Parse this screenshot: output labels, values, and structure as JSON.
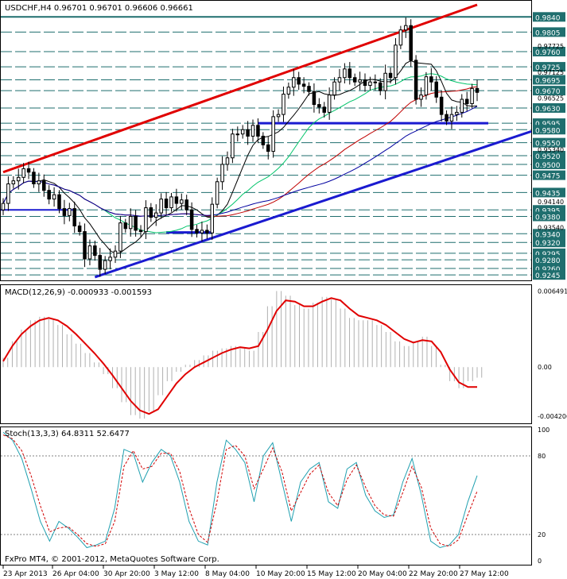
{
  "window": {
    "symbol_header": "USDCHF,H4  0.96701 0.96701 0.96606 0.96661",
    "footer": "FxPro MT4, © 2001-2012, MetaQuotes Software Corp."
  },
  "colors": {
    "candles": "#000000",
    "ma_fast": "#000000",
    "ma_mid": "#00c46a",
    "ma_slow": "#c00000",
    "ma_slower": "#0000a0",
    "trend_red": "#e00000",
    "trend_blue": "#1a1ad0",
    "levels": "#1f6e6e",
    "macd_line": "#e00000",
    "stoch_main": "#20a0b0",
    "stoch_signal": "#d00000",
    "price_label_bg": "#1f6e6e"
  },
  "chart_data": [
    {
      "type": "candlestick",
      "title": "USDCHF,H4  0.96701 0.96701 0.96606 0.96661",
      "ylim": [
        0.9238,
        0.9868
      ],
      "x_ticks": [
        "23 Apr 2013",
        "26 Apr 04:00",
        "30 Apr 20:00",
        "3 May 12:00",
        "8 May 04:00",
        "10 May 20:00",
        "15 May 12:00",
        "20 May 04:00",
        "22 May 20:00",
        "27 May 12:00"
      ],
      "levels": [
        0.984,
        0.9805,
        0.976,
        0.9725,
        0.9695,
        0.967,
        0.963,
        0.9595,
        0.958,
        0.955,
        0.952,
        0.95,
        0.9475,
        0.9435,
        0.9395,
        0.938,
        0.934,
        0.932,
        0.9295,
        0.928,
        0.926,
        0.9245
      ],
      "minor_labels": [
        0.97725,
        0.97125,
        0.96525,
        0.9534,
        0.9414,
        0.9354
      ],
      "close": [
        0.941,
        0.9455,
        0.9462,
        0.947,
        0.949,
        0.9482,
        0.9455,
        0.9462,
        0.944,
        0.942,
        0.943,
        0.9398,
        0.9382,
        0.9398,
        0.9358,
        0.9345,
        0.9282,
        0.9312,
        0.929,
        0.9258,
        0.9278,
        0.9286,
        0.93,
        0.9365,
        0.9352,
        0.938,
        0.9348,
        0.9345,
        0.94,
        0.9378,
        0.9388,
        0.942,
        0.94,
        0.9425,
        0.941,
        0.9418,
        0.9395,
        0.935,
        0.9342,
        0.9348,
        0.9342,
        0.9408,
        0.946,
        0.95,
        0.9515,
        0.957,
        0.957,
        0.958,
        0.9565,
        0.959,
        0.9565,
        0.9545,
        0.953,
        0.961,
        0.9615,
        0.9662,
        0.9678,
        0.97,
        0.9685,
        0.968,
        0.9668,
        0.9638,
        0.9632,
        0.962,
        0.966,
        0.969,
        0.97,
        0.972,
        0.97,
        0.969,
        0.9695,
        0.9682,
        0.969,
        0.9688,
        0.967,
        0.971,
        0.97,
        0.9775,
        0.981,
        0.982,
        0.974,
        0.965,
        0.966,
        0.9702,
        0.969,
        0.9655,
        0.9615,
        0.96,
        0.9615,
        0.962,
        0.965,
        0.964,
        0.9675,
        0.9666
      ],
      "macd": {
        "title": "MACD(12,26,9) -0.000933 -0.001593",
        "ylim": [
          -0.0046,
          0.0068
        ],
        "ticks": [
          "0.006491",
          "0.00",
          "-0.004206"
        ],
        "tick_values": [
          0.006491,
          0.0,
          -0.004206
        ],
        "signal": [
          0.0005,
          0.0018,
          0.0028,
          0.0035,
          0.004,
          0.0042,
          0.004,
          0.0035,
          0.0028,
          0.002,
          0.0012,
          0.0003,
          -0.0007,
          -0.0018,
          -0.0029,
          -0.0037,
          -0.004,
          -0.0036,
          -0.0025,
          -0.0014,
          -0.0006,
          0.0,
          0.0004,
          0.0008,
          0.0012,
          0.0015,
          0.0017,
          0.0016,
          0.0018,
          0.0032,
          0.0048,
          0.0057,
          0.0056,
          0.0052,
          0.0052,
          0.0056,
          0.0059,
          0.0057,
          0.005,
          0.0044,
          0.0042,
          0.004,
          0.0036,
          0.003,
          0.0024,
          0.0021,
          0.0023,
          0.0022,
          0.0013,
          -0.0002,
          -0.0013,
          -0.0017,
          -0.0017
        ],
        "histogram": [
          0.0008,
          0.0022,
          0.0032,
          0.004,
          0.0043,
          0.0041,
          0.0036,
          0.0028,
          0.002,
          0.0012,
          0.0004,
          -0.0006,
          -0.0018,
          -0.003,
          -0.0041,
          -0.0044,
          -0.0038,
          -0.0024,
          -0.0012,
          -0.0004,
          0.0002,
          0.0006,
          0.001,
          0.0014,
          0.0016,
          0.0018,
          0.0016,
          0.0014,
          0.003,
          0.0052,
          0.0065,
          0.0061,
          0.0053,
          0.005,
          0.0055,
          0.006,
          0.0058,
          0.005,
          0.0042,
          0.004,
          0.004,
          0.0036,
          0.003,
          0.0022,
          0.0018,
          0.0022,
          0.0026,
          0.0018,
          0.0002,
          -0.0012,
          -0.0018,
          -0.0012,
          -0.0009
        ]
      },
      "stochastic": {
        "title": "Stoch(13,3,3) 64.8311 52.6477",
        "ylim": [
          0,
          100
        ],
        "ticks": [
          "100",
          "80",
          "20",
          "0"
        ],
        "tick_values": [
          100,
          80,
          20,
          0
        ],
        "main": [
          98,
          92,
          78,
          55,
          30,
          15,
          30,
          25,
          18,
          10,
          12,
          15,
          40,
          85,
          82,
          60,
          75,
          85,
          80,
          60,
          30,
          15,
          12,
          60,
          92,
          85,
          75,
          45,
          80,
          90,
          60,
          30,
          60,
          70,
          75,
          45,
          40,
          70,
          75,
          50,
          38,
          33,
          35,
          60,
          78,
          50,
          15,
          10,
          12,
          20,
          45,
          65
        ],
        "signal": [
          96,
          93,
          84,
          65,
          42,
          22,
          25,
          26,
          20,
          13,
          11,
          13,
          30,
          72,
          84,
          70,
          72,
          82,
          82,
          68,
          40,
          20,
          14,
          45,
          85,
          88,
          80,
          55,
          70,
          86,
          68,
          38,
          52,
          66,
          73,
          52,
          42,
          62,
          73,
          56,
          42,
          35,
          34,
          52,
          72,
          56,
          25,
          13,
          11,
          16,
          35,
          53
        ]
      }
    }
  ]
}
